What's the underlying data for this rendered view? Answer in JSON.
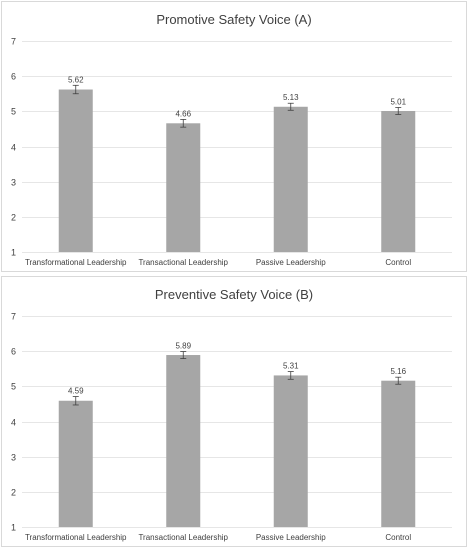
{
  "chart_data": [
    {
      "type": "bar",
      "title": "Promotive Safety Voice (A)",
      "categories": [
        "Transformational Leadership",
        "Transactional Leadership",
        "Passive Leadership",
        "Control"
      ],
      "values": [
        5.62,
        4.66,
        5.13,
        5.01
      ],
      "data_labels": [
        "5.62",
        "4.66",
        "5.13",
        "5.01"
      ],
      "error": [
        0.12,
        0.11,
        0.1,
        0.1
      ],
      "ylim": [
        1,
        7
      ],
      "yticks": [
        "1",
        "2",
        "3",
        "4",
        "5",
        "6",
        "7"
      ],
      "grid": true,
      "bar_color": "#a6a6a6"
    },
    {
      "type": "bar",
      "title": "Preventive Safety Voice (B)",
      "categories": [
        "Transformational Leadership",
        "Transactional Leadership",
        "Passive Leadership",
        "Control"
      ],
      "values": [
        4.59,
        5.89,
        5.31,
        5.16
      ],
      "data_labels": [
        "4.59",
        "5.89",
        "5.31",
        "5.16"
      ],
      "error": [
        0.12,
        0.1,
        0.11,
        0.1
      ],
      "ylim": [
        1,
        7
      ],
      "yticks": [
        "1",
        "2",
        "3",
        "4",
        "5",
        "6",
        "7"
      ],
      "grid": true,
      "bar_color": "#a6a6a6"
    }
  ]
}
